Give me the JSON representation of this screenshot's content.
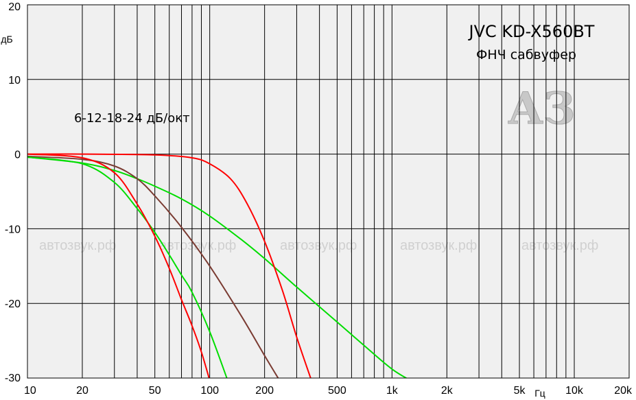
{
  "chart_data": {
    "type": "line",
    "title": "JVC KD-X560BT",
    "subtitle": "ФНЧ сабвуфер",
    "annotation": "6-12-18-24 дБ/окт",
    "xlabel": "Гц",
    "ylabel": "дБ",
    "xscale": "log",
    "xlim": [
      10,
      20000
    ],
    "ylim": [
      -30,
      20
    ],
    "grid": true,
    "x_ticks": [
      {
        "value": 10,
        "label": "10"
      },
      {
        "value": 20,
        "label": "20"
      },
      {
        "value": 50,
        "label": "50"
      },
      {
        "value": 100,
        "label": "100"
      },
      {
        "value": 200,
        "label": "200"
      },
      {
        "value": 500,
        "label": "500"
      },
      {
        "value": 1000,
        "label": "1k"
      },
      {
        "value": 2000,
        "label": "2k"
      },
      {
        "value": 5000,
        "label": "5k"
      },
      {
        "value": 10000,
        "label": "10k"
      },
      {
        "value": 20000,
        "label": "20k"
      }
    ],
    "y_ticks": [
      {
        "value": 20,
        "label": "20"
      },
      {
        "value": 10,
        "label": "10"
      },
      {
        "value": 0,
        "label": "0"
      },
      {
        "value": -10,
        "label": "-10"
      },
      {
        "value": -20,
        "label": "-20"
      },
      {
        "value": -30,
        "label": "-30"
      }
    ],
    "watermark_text": "автозвук.рф",
    "watermark_logo": "АЗ",
    "series": [
      {
        "color": "#00dd00",
        "x": [
          10,
          20,
          30,
          40,
          50,
          70,
          100,
          150,
          200,
          300,
          500,
          700,
          1000,
          1300
        ],
        "y": [
          -0.4,
          -1.2,
          -2.2,
          -3.3,
          -4.3,
          -6.0,
          -8.3,
          -11.5,
          -14.0,
          -17.8,
          -22.5,
          -25.6,
          -28.8,
          -30.5
        ]
      },
      {
        "color": "#7a3b32",
        "x": [
          10,
          20,
          30,
          40,
          50,
          70,
          100,
          150,
          200,
          240
        ],
        "y": [
          -0.3,
          -0.7,
          -1.6,
          -3.3,
          -5.6,
          -9.8,
          -15.0,
          -21.8,
          -27.0,
          -30.2
        ]
      },
      {
        "color": "#00dd00",
        "x": [
          10,
          20,
          30,
          40,
          50,
          60,
          70,
          80,
          100,
          125
        ],
        "y": [
          -0.4,
          -1.3,
          -3.8,
          -7.3,
          -10.5,
          -13.5,
          -16.2,
          -18.5,
          -23.8,
          -30.2
        ]
      },
      {
        "color": "#ff0000",
        "x": [
          10,
          20,
          30,
          40,
          50,
          60,
          70,
          80,
          90,
          100
        ],
        "y": [
          0,
          -0.5,
          -2.5,
          -6.7,
          -11.0,
          -15.3,
          -19.5,
          -23.0,
          -26.5,
          -30.3
        ]
      },
      {
        "color": "#ff0000",
        "x": [
          10,
          20,
          50,
          80,
          100,
          130,
          160,
          200,
          250,
          300,
          360
        ],
        "y": [
          0,
          0,
          -0.1,
          -0.5,
          -1.3,
          -3.3,
          -6.6,
          -11.7,
          -18.2,
          -24.5,
          -30.2
        ]
      }
    ]
  }
}
